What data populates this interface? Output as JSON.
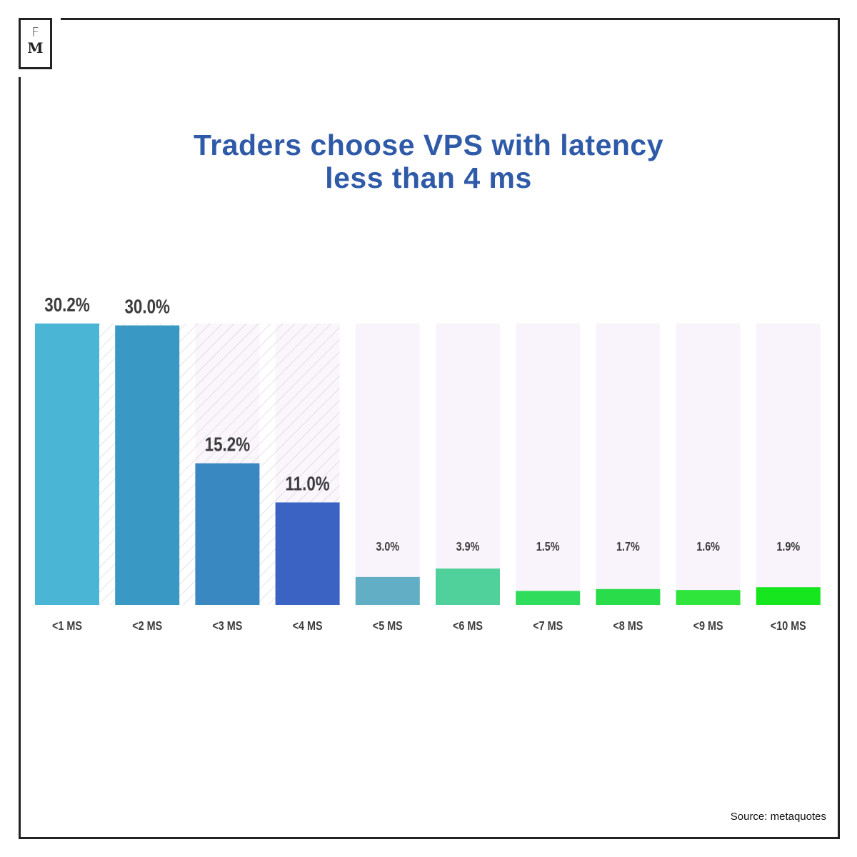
{
  "logo": {
    "top": "F",
    "bottom": "M"
  },
  "source": "Source: metaquotes",
  "chart_data": {
    "type": "bar",
    "title": "Traders choose VPS with latency less than 4 ms",
    "title_lines": [
      "Traders choose VPS with latency",
      "less than 4 ms"
    ],
    "categories": [
      "<1 MS",
      "<2 MS",
      "<3 MS",
      "<4 MS",
      "<5 MS",
      "<6 MS",
      "<7 MS",
      "<8 MS",
      "<9 MS",
      "<10 MS"
    ],
    "values": [
      30.2,
      30.0,
      15.2,
      11.0,
      3.0,
      3.9,
      1.5,
      1.7,
      1.6,
      1.9
    ],
    "data_labels": [
      "30.2%",
      "30.0%",
      "15.2%",
      "11.0%",
      "3.0%",
      "3.9%",
      "1.5%",
      "1.7%",
      "1.6%",
      "1.9%"
    ],
    "highlighted_categories": [
      "<1 MS",
      "<2 MS",
      "<3 MS",
      "<4 MS"
    ],
    "colors": [
      "#4bb5d5",
      "#3a98c4",
      "#3a88c2",
      "#3a63c4",
      "#62aec4",
      "#50d09a",
      "#2fdc5c",
      "#29dc4a",
      "#2fe53c",
      "#16e61e"
    ],
    "track_color": "#f9f4fb",
    "title_color": "#2f5aa8",
    "xlabel": "",
    "ylabel": "",
    "ylim": [
      0,
      30.2
    ],
    "grid": false
  }
}
